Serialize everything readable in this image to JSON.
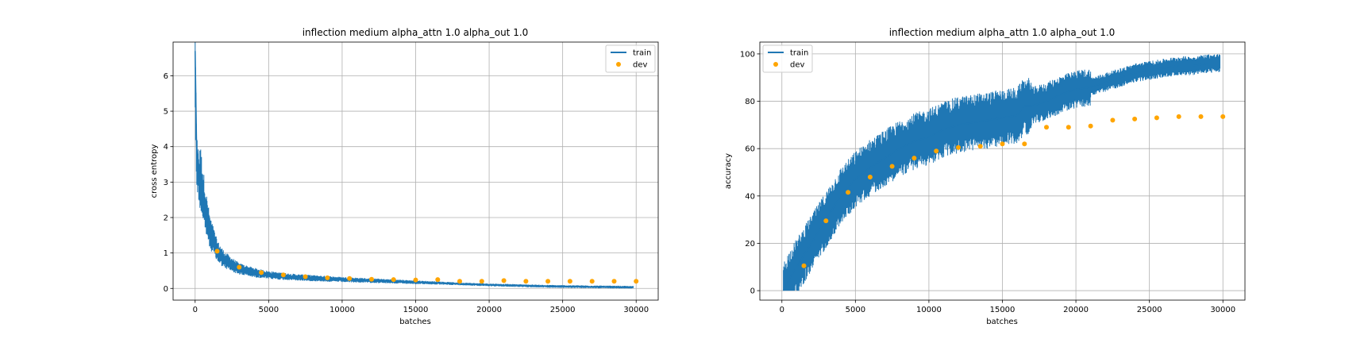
{
  "chart_data": [
    {
      "type": "line",
      "title": "inflection medium alpha_attn 1.0 alpha_out 1.0",
      "xlabel": "batches",
      "ylabel": "cross entropy",
      "xlim": [
        -1500,
        31500
      ],
      "ylim": [
        -0.33,
        6.95
      ],
      "xticks": [
        0,
        5000,
        10000,
        15000,
        20000,
        25000,
        30000
      ],
      "yticks": [
        0,
        1,
        2,
        3,
        4,
        5,
        6
      ],
      "grid": true,
      "legend_position": "upper right",
      "colors": {
        "train": "#1f77b4",
        "dev": "#ffa500"
      },
      "series": [
        {
          "name": "train",
          "kind": "line",
          "x": [
            0,
            100,
            200,
            400,
            700,
            1000,
            1500,
            2000,
            3000,
            4000,
            5000,
            6000,
            7000,
            8000,
            9000,
            10000,
            12000,
            14000,
            16000,
            18000,
            20000,
            22000,
            24000,
            26000,
            28000,
            29800
          ],
          "y": [
            6.7,
            4.0,
            3.6,
            3.0,
            2.2,
            1.6,
            1.05,
            0.8,
            0.55,
            0.45,
            0.38,
            0.34,
            0.31,
            0.29,
            0.27,
            0.25,
            0.22,
            0.19,
            0.16,
            0.13,
            0.1,
            0.08,
            0.06,
            0.05,
            0.04,
            0.03
          ]
        },
        {
          "name": "dev",
          "kind": "scatter",
          "x": [
            1500,
            3000,
            4500,
            6000,
            7500,
            9000,
            10500,
            12000,
            13500,
            15000,
            16500,
            18000,
            19500,
            21000,
            22500,
            24000,
            25500,
            27000,
            28500,
            30000
          ],
          "y": [
            1.05,
            0.6,
            0.45,
            0.38,
            0.33,
            0.3,
            0.28,
            0.26,
            0.25,
            0.24,
            0.25,
            0.2,
            0.2,
            0.22,
            0.2,
            0.2,
            0.2,
            0.2,
            0.2,
            0.2
          ]
        }
      ]
    },
    {
      "type": "line",
      "title": "inflection medium alpha_attn 1.0 alpha_out 1.0",
      "xlabel": "batches",
      "ylabel": "accuracy",
      "xlim": [
        -1500,
        31500
      ],
      "ylim": [
        -4,
        105
      ],
      "xticks": [
        0,
        5000,
        10000,
        15000,
        20000,
        25000,
        30000
      ],
      "yticks": [
        0,
        20,
        40,
        60,
        80,
        100
      ],
      "grid": true,
      "legend_position": "upper left",
      "colors": {
        "train": "#1f77b4",
        "dev": "#ffa500"
      },
      "series": [
        {
          "name": "train",
          "kind": "line",
          "x": [
            100,
            500,
            1000,
            1500,
            2000,
            2500,
            3000,
            4000,
            5000,
            6000,
            7000,
            8000,
            9000,
            10000,
            11000,
            12000,
            13000,
            14000,
            15000,
            16000,
            16500,
            17000,
            18000,
            19000,
            20000,
            21000,
            22000,
            23000,
            24000,
            25000,
            26000,
            27000,
            28000,
            29000,
            29800
          ],
          "y": [
            0,
            5,
            10,
            15,
            20,
            25,
            30,
            40,
            47,
            52,
            56,
            60,
            63,
            65,
            68,
            70,
            71,
            72,
            73,
            74,
            78,
            78,
            80,
            83,
            85,
            86,
            88,
            90,
            92,
            93,
            94,
            95,
            95,
            96,
            96
          ]
        },
        {
          "name": "dev",
          "kind": "scatter",
          "x": [
            1500,
            3000,
            4500,
            6000,
            7500,
            9000,
            10500,
            12000,
            13500,
            15000,
            16500,
            18000,
            19500,
            21000,
            22500,
            24000,
            25500,
            27000,
            28500,
            30000
          ],
          "y": [
            10.5,
            29.5,
            41.5,
            48,
            52.5,
            56,
            59,
            60.5,
            61,
            62,
            62,
            69,
            69,
            69.5,
            72,
            72.5,
            73,
            73.5,
            73.5,
            73.5
          ]
        }
      ]
    }
  ]
}
